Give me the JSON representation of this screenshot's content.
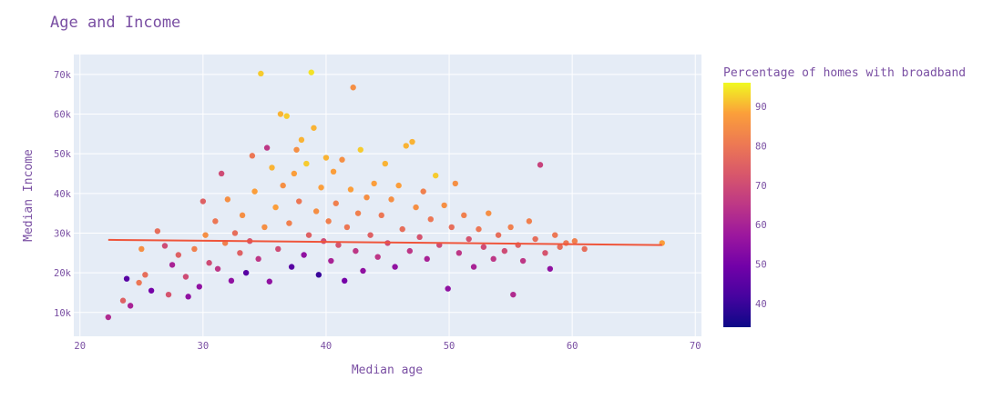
{
  "chart_data": {
    "type": "scatter",
    "title": "Age and Income",
    "xlabel": "Median age",
    "ylabel": "Median Income",
    "xlim": [
      19.5,
      70.5
    ],
    "ylim": [
      4000,
      75000
    ],
    "x_ticks": [
      20,
      30,
      40,
      50,
      60,
      70
    ],
    "x_tick_labels": [
      "20",
      "30",
      "40",
      "50",
      "60",
      "70"
    ],
    "y_ticks": [
      10000,
      20000,
      30000,
      40000,
      50000,
      60000,
      70000
    ],
    "y_tick_labels": [
      "10k",
      "20k",
      "30k",
      "40k",
      "50k",
      "60k",
      "70k"
    ],
    "grid": true,
    "colorbar": {
      "title": "Percentage of homes with broadband",
      "range": [
        34,
        96
      ],
      "ticks": [
        40,
        50,
        60,
        70,
        80,
        90
      ],
      "tick_labels": [
        "40",
        "50",
        "60",
        "70",
        "80",
        "90"
      ]
    },
    "trendline": {
      "x": [
        22.3,
        67.3
      ],
      "y": [
        28300,
        27000
      ],
      "color": "#ef553b"
    },
    "points": [
      [
        22.3,
        8800,
        62
      ],
      [
        23.5,
        13000,
        75
      ],
      [
        23.8,
        18500,
        45
      ],
      [
        24.1,
        11700,
        60
      ],
      [
        24.8,
        17500,
        80
      ],
      [
        25.0,
        26000,
        85
      ],
      [
        25.3,
        19500,
        78
      ],
      [
        25.8,
        15500,
        50
      ],
      [
        26.3,
        30500,
        78
      ],
      [
        26.9,
        26800,
        70
      ],
      [
        27.2,
        14500,
        72
      ],
      [
        27.5,
        22000,
        60
      ],
      [
        28.0,
        24500,
        75
      ],
      [
        28.6,
        19000,
        70
      ],
      [
        28.8,
        14000,
        55
      ],
      [
        29.3,
        26000,
        82
      ],
      [
        29.7,
        16500,
        55
      ],
      [
        30.0,
        38000,
        75
      ],
      [
        30.2,
        29500,
        85
      ],
      [
        30.5,
        22500,
        70
      ],
      [
        31.0,
        33000,
        80
      ],
      [
        31.2,
        21000,
        65
      ],
      [
        31.5,
        45000,
        70
      ],
      [
        31.8,
        27500,
        82
      ],
      [
        32.0,
        38500,
        85
      ],
      [
        32.3,
        18000,
        55
      ],
      [
        32.6,
        30000,
        78
      ],
      [
        33.0,
        25000,
        75
      ],
      [
        33.2,
        34500,
        85
      ],
      [
        33.5,
        20000,
        45
      ],
      [
        33.8,
        28000,
        72
      ],
      [
        34.0,
        49500,
        80
      ],
      [
        34.2,
        40500,
        88
      ],
      [
        34.5,
        23500,
        65
      ],
      [
        34.7,
        70200,
        92
      ],
      [
        35.0,
        31500,
        85
      ],
      [
        35.2,
        51500,
        65
      ],
      [
        35.4,
        17800,
        55
      ],
      [
        35.6,
        46500,
        90
      ],
      [
        35.9,
        36500,
        88
      ],
      [
        36.1,
        26000,
        70
      ],
      [
        36.3,
        60000,
        90
      ],
      [
        36.5,
        42000,
        85
      ],
      [
        36.8,
        59500,
        92
      ],
      [
        37.0,
        32500,
        82
      ],
      [
        37.2,
        21500,
        45
      ],
      [
        37.4,
        45000,
        88
      ],
      [
        37.6,
        51000,
        85
      ],
      [
        37.8,
        38000,
        80
      ],
      [
        38.0,
        53500,
        90
      ],
      [
        38.2,
        24500,
        55
      ],
      [
        38.4,
        47500,
        92
      ],
      [
        38.6,
        29500,
        75
      ],
      [
        38.8,
        70500,
        94
      ],
      [
        39.0,
        56500,
        90
      ],
      [
        39.2,
        35500,
        85
      ],
      [
        39.4,
        19500,
        40
      ],
      [
        39.6,
        41500,
        88
      ],
      [
        39.8,
        28000,
        70
      ],
      [
        40.0,
        49000,
        90
      ],
      [
        40.2,
        33000,
        82
      ],
      [
        40.4,
        23000,
        60
      ],
      [
        40.6,
        45500,
        88
      ],
      [
        40.8,
        37500,
        82
      ],
      [
        41.0,
        27000,
        72
      ],
      [
        41.3,
        48500,
        85
      ],
      [
        41.5,
        18000,
        50
      ],
      [
        41.7,
        31500,
        80
      ],
      [
        42.0,
        41000,
        88
      ],
      [
        42.2,
        66700,
        85
      ],
      [
        42.4,
        25500,
        65
      ],
      [
        42.6,
        35000,
        82
      ],
      [
        42.8,
        51000,
        92
      ],
      [
        43.0,
        20500,
        55
      ],
      [
        43.3,
        39000,
        85
      ],
      [
        43.6,
        29500,
        75
      ],
      [
        43.9,
        42500,
        88
      ],
      [
        44.2,
        24000,
        65
      ],
      [
        44.5,
        34500,
        80
      ],
      [
        44.8,
        47500,
        90
      ],
      [
        45.0,
        27500,
        70
      ],
      [
        45.3,
        38500,
        85
      ],
      [
        45.6,
        21500,
        55
      ],
      [
        45.9,
        42000,
        88
      ],
      [
        46.2,
        31000,
        78
      ],
      [
        46.5,
        52000,
        90
      ],
      [
        46.8,
        25500,
        65
      ],
      [
        47.0,
        53000,
        90
      ],
      [
        47.3,
        36500,
        85
      ],
      [
        47.6,
        29000,
        72
      ],
      [
        47.9,
        40500,
        82
      ],
      [
        48.2,
        23500,
        60
      ],
      [
        48.5,
        33500,
        80
      ],
      [
        48.9,
        44500,
        92
      ],
      [
        49.2,
        27000,
        70
      ],
      [
        49.6,
        37000,
        85
      ],
      [
        49.9,
        16000,
        55
      ],
      [
        50.2,
        31500,
        78
      ],
      [
        50.5,
        42500,
        85
      ],
      [
        50.8,
        25000,
        65
      ],
      [
        51.2,
        34500,
        82
      ],
      [
        51.6,
        28500,
        72
      ],
      [
        52.0,
        21500,
        60
      ],
      [
        52.4,
        31000,
        80
      ],
      [
        52.8,
        26500,
        70
      ],
      [
        53.2,
        35000,
        85
      ],
      [
        53.6,
        23500,
        65
      ],
      [
        54.0,
        29500,
        78
      ],
      [
        54.5,
        25500,
        70
      ],
      [
        55.0,
        31500,
        82
      ],
      [
        55.2,
        14500,
        62
      ],
      [
        55.6,
        27000,
        75
      ],
      [
        56.0,
        23000,
        65
      ],
      [
        56.5,
        33000,
        82
      ],
      [
        57.0,
        28500,
        78
      ],
      [
        57.4,
        47200,
        68
      ],
      [
        57.8,
        25000,
        72
      ],
      [
        58.2,
        21000,
        55
      ],
      [
        58.6,
        29500,
        80
      ],
      [
        59.0,
        26500,
        78
      ],
      [
        59.5,
        27500,
        80
      ],
      [
        60.2,
        28000,
        82
      ],
      [
        61.0,
        26000,
        78
      ],
      [
        67.3,
        27500,
        88
      ]
    ]
  }
}
